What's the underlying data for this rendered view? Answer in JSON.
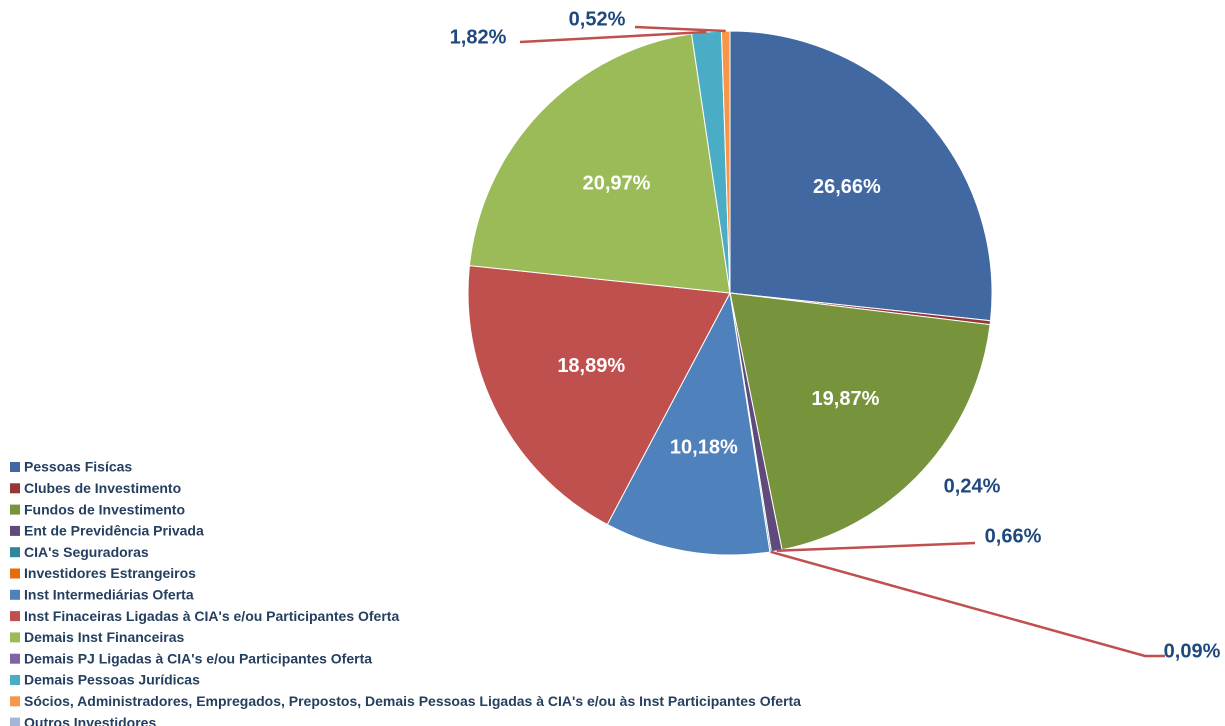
{
  "chart_data": {
    "type": "pie",
    "categories": [
      "Pessoas Fisícas",
      "Clubes de Investimento",
      "Fundos de Investimento",
      "Ent de Previdência Privada",
      "CIA's Seguradoras",
      "Investidores Estrangeiros",
      "Inst Intermediárias Oferta",
      "Inst Finaceiras Ligadas à CIA's e/ou Participantes Oferta",
      "Demais Inst Financeiras",
      "Demais PJ Ligadas à CIA's e/ou Participantes Oferta",
      "Demais Pessoas Jurídicas",
      "Sócios, Administradores, Empregados, Prepostos, Demais Pessoas Ligadas à CIA's e/ou às Inst Participantes Oferta",
      "Outros Investidores"
    ],
    "values": [
      26.66,
      0.24,
      19.87,
      0.66,
      0.09,
      0,
      10.18,
      18.89,
      20.97,
      0,
      1.82,
      0.52,
      0
    ],
    "value_labels": [
      "26,66%",
      "0,24%",
      "19,87%",
      "0,66%",
      "0,09%",
      null,
      "10,18%",
      "18,89%",
      "20,97%",
      null,
      "1,82%",
      "0,52%",
      null
    ],
    "colors": [
      "#4168a0",
      "#953735",
      "#77933c",
      "#604a7b",
      "#31859c",
      "#e46c0a",
      "#4f81bd",
      "#c0504d",
      "#9bbb59",
      "#8064a2",
      "#4bacc6",
      "#f79646",
      "#a5b6d7"
    ],
    "legend": "bottom-left"
  }
}
